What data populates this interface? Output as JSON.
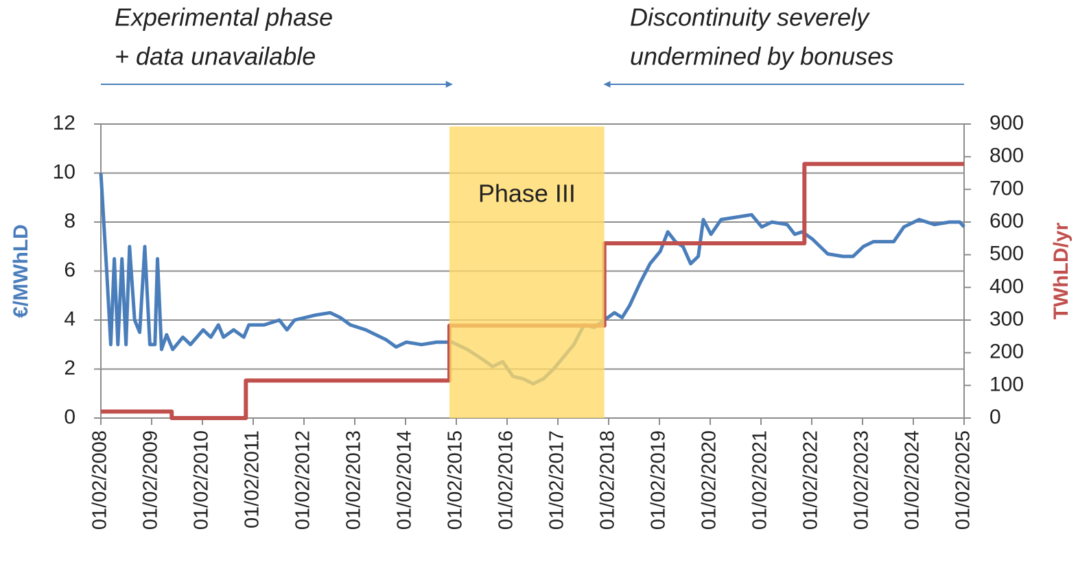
{
  "chart_data": {
    "type": "line",
    "ylabel": "€/MWhLD",
    "y2label": "TWhLD/yr",
    "ylim": [
      0,
      12
    ],
    "yticks": [
      0,
      2,
      4,
      6,
      8,
      10,
      12
    ],
    "y2lim": [
      0,
      900
    ],
    "y2ticks": [
      0,
      100,
      200,
      300,
      400,
      500,
      600,
      700,
      800,
      900
    ],
    "xlim": [
      2008.085,
      2025.085
    ],
    "xticks": [
      {
        "value": 2008.085,
        "label": "01/02/2008"
      },
      {
        "value": 2009.085,
        "label": "01/02/2009"
      },
      {
        "value": 2010.085,
        "label": "01/02/2010"
      },
      {
        "value": 2011.085,
        "label": "01/02/2011"
      },
      {
        "value": 2012.085,
        "label": "01/02/2012"
      },
      {
        "value": 2013.085,
        "label": "01/02/2013"
      },
      {
        "value": 2014.085,
        "label": "01/02/2014"
      },
      {
        "value": 2015.085,
        "label": "01/02/2015"
      },
      {
        "value": 2016.085,
        "label": "01/02/2016"
      },
      {
        "value": 2017.085,
        "label": "01/02/2017"
      },
      {
        "value": 2018.085,
        "label": "01/02/2018"
      },
      {
        "value": 2019.085,
        "label": "01/02/2019"
      },
      {
        "value": 2020.085,
        "label": "01/02/2020"
      },
      {
        "value": 2021.085,
        "label": "01/02/2021"
      },
      {
        "value": 2022.085,
        "label": "01/02/2022"
      },
      {
        "value": 2023.085,
        "label": "01/02/2023"
      },
      {
        "value": 2024.085,
        "label": "01/02/2024"
      },
      {
        "value": 2025.085,
        "label": "01/02/2025"
      }
    ],
    "grid": true,
    "highlight": {
      "x": [
        2014.95,
        2018.0
      ],
      "top": 11.9,
      "label": "Phase III",
      "color": "#ffd966"
    },
    "annotations": [
      {
        "text": [
          "Experimental phase",
          "+ data unavailable"
        ],
        "x": [
          2008.085,
          2015.0
        ]
      },
      {
        "text": [
          "Discontinuity severely",
          "undermined by bonuses"
        ],
        "x": [
          2025.085,
          2018.0
        ]
      }
    ],
    "series": [
      {
        "color": "#4a7ebb",
        "axis": "y",
        "x": [
          2008.085,
          2008.2,
          2008.28,
          2008.35,
          2008.42,
          2008.5,
          2008.58,
          2008.65,
          2008.75,
          2008.85,
          2008.95,
          2009.05,
          2009.15,
          2009.2,
          2009.28,
          2009.38,
          2009.5,
          2009.7,
          2009.85,
          2010.1,
          2010.25,
          2010.4,
          2010.5,
          2010.7,
          2010.9,
          2011.0,
          2011.3,
          2011.6,
          2011.75,
          2011.9,
          2012.3,
          2012.6,
          2012.8,
          2013.0,
          2013.3,
          2013.7,
          2013.9,
          2014.1,
          2014.4,
          2014.7,
          2015.0,
          2015.3,
          2015.6,
          2015.8,
          2016.0,
          2016.2,
          2016.4,
          2016.6,
          2016.8,
          2017.0,
          2017.2,
          2017.4,
          2017.6,
          2017.8,
          2018.0,
          2018.2,
          2018.35,
          2018.5,
          2018.7,
          2018.9,
          2019.1,
          2019.25,
          2019.4,
          2019.55,
          2019.7,
          2019.85,
          2019.95,
          2020.1,
          2020.3,
          2020.6,
          2020.9,
          2021.1,
          2021.3,
          2021.6,
          2021.75,
          2021.9,
          2022.1,
          2022.4,
          2022.7,
          2022.9,
          2023.1,
          2023.3,
          2023.7,
          2023.9,
          2024.2,
          2024.5,
          2024.8,
          2025.0,
          2025.085
        ],
        "values": [
          10,
          6,
          3,
          6.5,
          3,
          6.5,
          3,
          7,
          4,
          3.5,
          7,
          3,
          3,
          6.5,
          2.8,
          3.4,
          2.8,
          3.3,
          3,
          3.6,
          3.3,
          3.8,
          3.3,
          3.6,
          3.3,
          3.8,
          3.8,
          4,
          3.6,
          4,
          4.2,
          4.3,
          4.1,
          3.8,
          3.6,
          3.2,
          2.9,
          3.1,
          3.0,
          3.1,
          3.1,
          2.8,
          2.4,
          2.1,
          2.3,
          1.7,
          1.6,
          1.4,
          1.6,
          2.0,
          2.5,
          3.0,
          3.8,
          3.7,
          4.0,
          4.3,
          4.1,
          4.6,
          5.5,
          6.3,
          6.8,
          7.6,
          7.2,
          7.0,
          6.3,
          6.6,
          8.1,
          7.5,
          8.1,
          8.2,
          8.3,
          7.8,
          8.0,
          7.9,
          7.5,
          7.6,
          7.3,
          6.7,
          6.6,
          6.6,
          7.0,
          7.2,
          7.2,
          7.8,
          8.1,
          7.9,
          8.0,
          8.0,
          7.8
        ]
      },
      {
        "color": "#c0504d",
        "axis": "y2",
        "x": [
          2008.085,
          2009.48,
          2009.48,
          2010.94,
          2010.94,
          2014.95,
          2014.95,
          2018.0,
          2018.0,
          2021.94,
          2021.94,
          2025.085
        ],
        "values": [
          20,
          20,
          0,
          0,
          115,
          115,
          283,
          283,
          535,
          535,
          778,
          778
        ]
      }
    ]
  }
}
